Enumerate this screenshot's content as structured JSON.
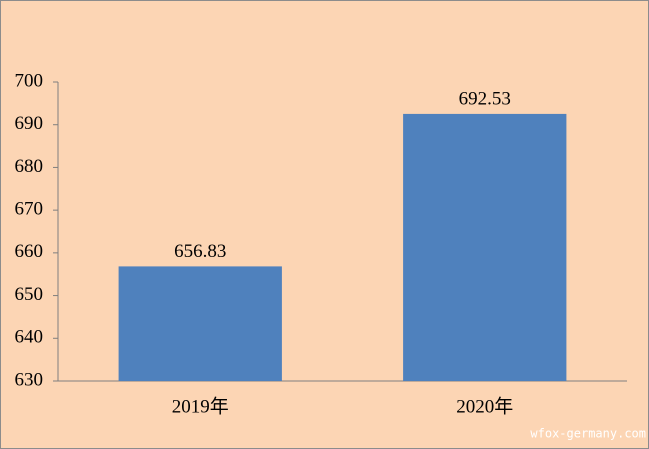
{
  "chart_data": {
    "type": "bar",
    "categories": [
      "2019年",
      "2020年"
    ],
    "values": [
      656.83,
      692.53
    ],
    "color": "#4f81bd",
    "ylim": [
      630,
      700
    ],
    "yticks": [
      630,
      640,
      650,
      660,
      670,
      680,
      690,
      700
    ],
    "grid": false,
    "watermark": "wfox-germany.com"
  }
}
